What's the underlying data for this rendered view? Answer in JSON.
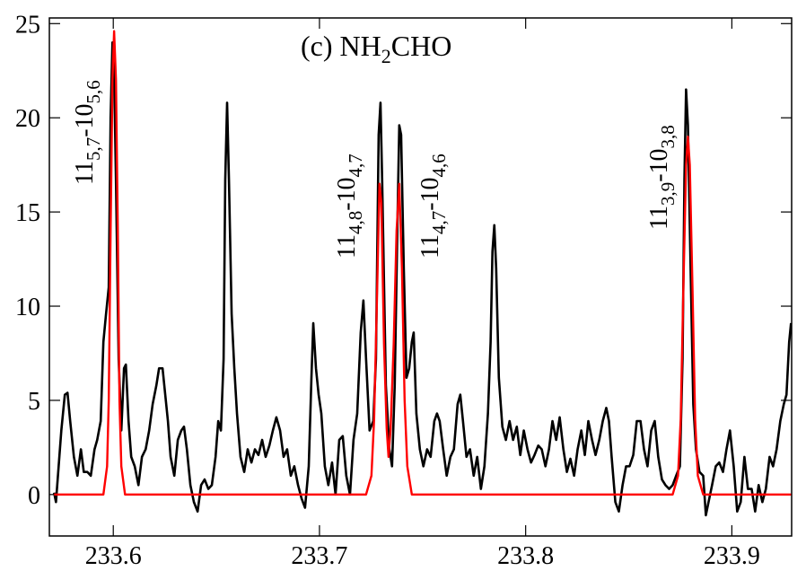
{
  "chart_data": {
    "type": "line",
    "title": [
      "(c) NH",
      "2",
      "CHO"
    ],
    "xlim": [
      233.569,
      233.929
    ],
    "ylim": [
      -2.2,
      25.3
    ],
    "xticks": [
      233.6,
      233.7,
      233.8,
      233.9
    ],
    "yticks": [
      0,
      5,
      10,
      15,
      20,
      25
    ],
    "annotations": [
      {
        "parts": [
          "11",
          "5,7",
          "-10",
          "5,6"
        ]
      },
      {
        "parts": [
          "11",
          "4,8",
          "-10",
          "4,7"
        ]
      },
      {
        "parts": [
          "11",
          "4,7",
          "-10",
          "4,6"
        ]
      },
      {
        "parts": [
          "11",
          "3,9",
          "-10",
          "3,8"
        ]
      }
    ],
    "series": [
      {
        "color": "#000000",
        "x": [
          233.5713,
          233.5722,
          233.5735,
          233.5748,
          233.5765,
          233.5778,
          233.5791,
          233.5809,
          233.5826,
          233.5843,
          233.5857,
          233.5874,
          233.5891,
          233.5909,
          233.5922,
          233.5939,
          233.5952,
          233.5965,
          233.5978,
          233.5987,
          233.5996,
          233.6004,
          233.6013,
          233.6026,
          233.6039,
          233.6052,
          233.6061,
          233.6074,
          233.6087,
          233.6104,
          233.6122,
          233.6139,
          233.6157,
          233.6174,
          233.6191,
          233.6209,
          233.6222,
          233.6239,
          233.6252,
          233.6265,
          233.6278,
          233.6296,
          233.6313,
          233.633,
          233.6343,
          233.6357,
          233.6374,
          233.6391,
          233.6409,
          233.6426,
          233.6443,
          233.6461,
          233.6478,
          233.6496,
          233.6509,
          233.6522,
          233.6535,
          233.6543,
          233.6552,
          233.6561,
          233.6574,
          233.6587,
          233.66,
          233.6617,
          233.6635,
          233.6652,
          233.667,
          233.6687,
          233.6704,
          233.6722,
          233.6739,
          233.6757,
          233.6774,
          233.6791,
          233.6809,
          233.6826,
          233.6843,
          233.6861,
          233.6878,
          233.6896,
          233.6913,
          233.693,
          233.6948,
          233.6961,
          233.697,
          233.6983,
          233.6996,
          233.7009,
          233.7026,
          233.7043,
          233.7061,
          233.7078,
          233.7096,
          233.7113,
          233.713,
          233.7148,
          233.7165,
          233.7183,
          233.72,
          233.7213,
          233.7226,
          233.7243,
          233.7261,
          233.7274,
          233.7287,
          233.7296,
          233.7304,
          233.7322,
          233.7339,
          233.7352,
          233.7365,
          233.7378,
          233.7387,
          233.7396,
          233.7409,
          233.7422,
          233.7435,
          233.7448,
          233.7457,
          233.747,
          233.7487,
          233.7504,
          233.7522,
          233.7539,
          233.7557,
          233.757,
          233.7583,
          233.76,
          233.7617,
          233.7635,
          233.7652,
          233.767,
          233.7683,
          233.7696,
          233.7713,
          233.773,
          233.7748,
          233.7765,
          233.7783,
          233.78,
          233.7817,
          233.783,
          233.7839,
          233.7848,
          233.7857,
          233.787,
          233.7887,
          233.7904,
          233.7922,
          233.7939,
          233.7957,
          233.7974,
          233.7991,
          233.8009,
          233.8026,
          233.8043,
          233.8061,
          233.8078,
          233.8096,
          233.8113,
          233.813,
          233.8148,
          233.8165,
          233.8183,
          233.82,
          233.8217,
          233.8235,
          233.8252,
          233.827,
          233.8287,
          233.8304,
          233.8322,
          233.8339,
          233.8357,
          233.8374,
          233.8391,
          233.8404,
          233.8417,
          233.8435,
          233.8452,
          233.847,
          233.8487,
          233.8504,
          233.8522,
          233.8539,
          233.8557,
          233.8574,
          233.8591,
          233.8609,
          233.8626,
          233.8643,
          233.8661,
          233.8678,
          233.8696,
          233.8713,
          233.873,
          233.8748,
          233.8761,
          233.877,
          233.8778,
          233.8787,
          233.88,
          233.8813,
          233.8826,
          233.8843,
          233.8861,
          233.8874,
          233.8887,
          233.8904,
          233.8922,
          233.8939,
          233.8957,
          233.8974,
          233.8991,
          233.9009,
          233.9026,
          233.9043,
          233.9061,
          233.9078,
          233.9096,
          233.9113,
          233.913,
          233.9148,
          233.9165,
          233.9183,
          233.92,
          233.9217,
          233.9235,
          233.9252,
          233.9265,
          233.9278,
          233.9287
        ],
        "values": [
          0.1,
          -0.4,
          1.5,
          3.4,
          5.3,
          5.4,
          3.9,
          2.0,
          1.0,
          2.4,
          1.2,
          1.2,
          1.0,
          2.4,
          2.9,
          3.9,
          8.1,
          9.6,
          11.0,
          20.0,
          24.0,
          22.4,
          16.7,
          7.2,
          3.4,
          6.7,
          6.9,
          3.9,
          2.0,
          1.5,
          0.5,
          2.0,
          2.4,
          3.4,
          4.8,
          5.8,
          6.7,
          6.7,
          5.3,
          3.9,
          2.0,
          1.0,
          2.9,
          3.4,
          3.6,
          2.4,
          0.5,
          -0.4,
          -0.9,
          0.5,
          0.8,
          0.3,
          0.5,
          2.0,
          3.9,
          3.4,
          7.2,
          16.7,
          20.8,
          16.7,
          9.6,
          6.7,
          4.3,
          2.0,
          1.2,
          2.4,
          1.7,
          2.4,
          2.1,
          2.9,
          2.0,
          2.6,
          3.4,
          4.1,
          3.4,
          2.0,
          2.4,
          1.0,
          1.5,
          0.5,
          -0.2,
          -0.7,
          1.5,
          6.2,
          9.1,
          6.7,
          5.3,
          4.3,
          1.5,
          0.5,
          1.7,
          0.0,
          2.9,
          3.1,
          1.0,
          0.0,
          2.9,
          4.3,
          8.6,
          10.3,
          7.2,
          3.4,
          3.9,
          7.2,
          19.1,
          20.8,
          16.7,
          5.8,
          2.4,
          1.5,
          5.8,
          14.3,
          19.6,
          19.1,
          12.0,
          6.2,
          6.7,
          8.1,
          8.6,
          4.3,
          2.4,
          1.5,
          2.4,
          2.0,
          3.9,
          4.3,
          3.9,
          2.4,
          1.0,
          2.0,
          2.4,
          4.8,
          5.3,
          3.9,
          2.0,
          2.4,
          1.0,
          2.0,
          0.3,
          1.5,
          4.3,
          8.1,
          12.9,
          14.3,
          12.0,
          6.2,
          3.6,
          2.9,
          3.9,
          2.9,
          3.6,
          2.1,
          3.4,
          2.4,
          1.7,
          2.1,
          2.6,
          2.4,
          1.5,
          2.4,
          3.9,
          2.9,
          4.1,
          2.4,
          1.2,
          1.9,
          1.0,
          2.4,
          3.4,
          2.1,
          3.9,
          2.9,
          2.1,
          2.9,
          3.9,
          4.6,
          3.9,
          2.0,
          -0.4,
          -0.9,
          0.5,
          1.5,
          1.5,
          2.1,
          3.9,
          3.9,
          2.4,
          1.5,
          3.4,
          3.9,
          2.0,
          0.8,
          0.5,
          0.3,
          0.5,
          1.0,
          1.5,
          7.2,
          16.7,
          21.5,
          19.6,
          12.0,
          4.8,
          2.4,
          1.2,
          1.0,
          -1.1,
          -0.4,
          0.5,
          1.5,
          1.7,
          1.2,
          2.4,
          3.4,
          1.5,
          -0.9,
          -0.4,
          2.0,
          0.3,
          0.3,
          -0.9,
          0.5,
          -0.4,
          0.3,
          2.0,
          1.5,
          2.4,
          3.9,
          4.8,
          5.3,
          8.1,
          9.1
        ]
      },
      {
        "color": "#ff0000",
        "x": [
          233.5713,
          233.5952,
          233.597,
          233.5978,
          233.5987,
          233.5996,
          233.6004,
          233.6013,
          233.6022,
          233.603,
          233.6039,
          233.6057,
          233.7226,
          233.7252,
          233.7265,
          233.7278,
          233.7291,
          233.73,
          233.7313,
          233.7326,
          233.7335,
          233.7345,
          233.736,
          233.7374,
          233.7387,
          233.74,
          233.7413,
          233.7426,
          233.7448,
          233.8713,
          233.8739,
          233.8752,
          233.8765,
          233.8778,
          233.8787,
          233.8796,
          233.8809,
          233.8822,
          233.8835,
          233.8861,
          233.9287
        ],
        "values": [
          0,
          0,
          1.5,
          5,
          14,
          22,
          24.6,
          22,
          14,
          5,
          1.5,
          0,
          0,
          1,
          4,
          10,
          16.5,
          15.5,
          8,
          3.5,
          2.0,
          3.5,
          8,
          14,
          16.5,
          12,
          5,
          1.5,
          0,
          0,
          1,
          4,
          11,
          17.5,
          19.0,
          17.5,
          11,
          4,
          1,
          0,
          0
        ]
      }
    ]
  }
}
